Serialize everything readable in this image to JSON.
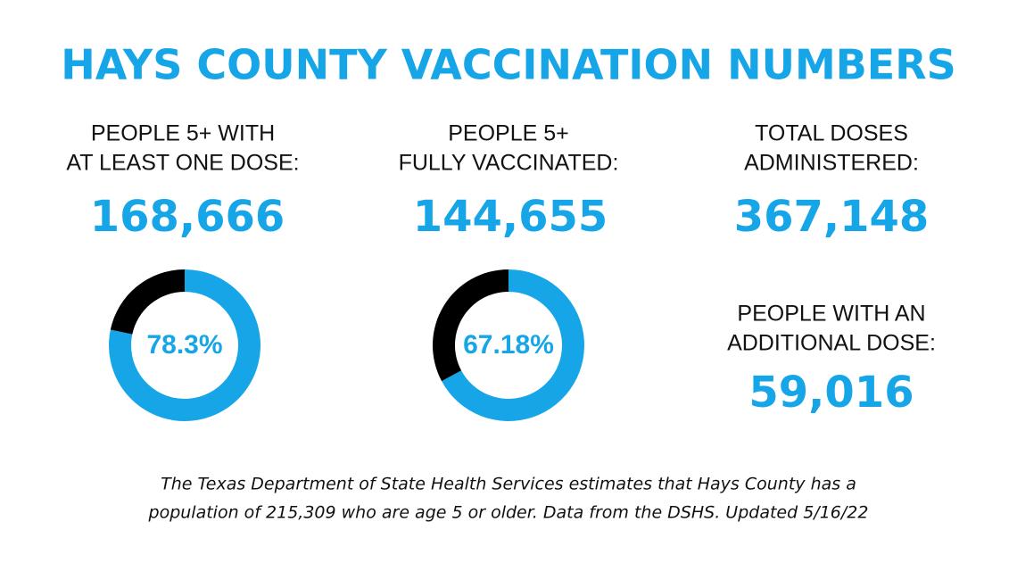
{
  "title": "HAYS COUNTY VACCINATION NUMBERS",
  "stats": [
    {
      "heading": [
        "PEOPLE  5+ WITH",
        "AT LEAST ONE DOSE:"
      ],
      "value": "168,666"
    },
    {
      "heading": [
        "PEOPLE 5+",
        "FULLY VACCINATED:"
      ],
      "value": "144,655"
    },
    {
      "heading": [
        "TOTAL DOSES",
        "ADMINISTERED:"
      ],
      "value": "367,148"
    },
    {
      "heading": [
        "PEOPLE WITH AN",
        "ADDITIONAL DOSE:"
      ],
      "value": "59,016"
    }
  ],
  "chart_data": [
    {
      "type": "pie",
      "donut": true,
      "values": [
        78.3,
        21.7
      ],
      "value_labels": [
        "78.3%",
        null
      ],
      "colors": [
        "#16a6e8",
        "#000000"
      ]
    },
    {
      "type": "pie",
      "donut": true,
      "values": [
        67.18,
        32.82
      ],
      "value_labels": [
        "67.18%",
        null
      ],
      "colors": [
        "#16a6e8",
        "#000000"
      ]
    }
  ],
  "footnote": [
    "The Texas Department of State Health Services estimates that Hays County has a",
    "population of 215,309 who are age 5 or older. Data from the DSHS. Updated 5/16/22"
  ]
}
